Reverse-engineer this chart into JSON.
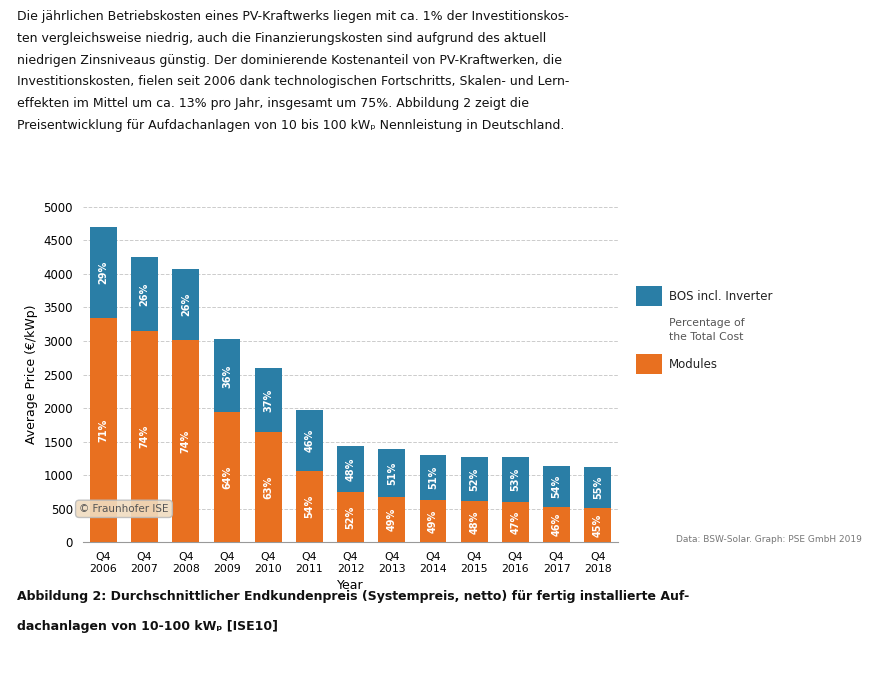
{
  "years": [
    "Q4\n2006",
    "Q4\n2007",
    "Q4\n2008",
    "Q4\n2009",
    "Q4\n2010",
    "Q4\n2011",
    "Q4\n2012",
    "Q4\n2013",
    "Q4\n2014",
    "Q4\n2015",
    "Q4\n2016",
    "Q4\n2017",
    "Q4\n2018"
  ],
  "total": [
    4700,
    4250,
    4075,
    3025,
    2600,
    1975,
    1430,
    1385,
    1300,
    1270,
    1270,
    1140,
    1130
  ],
  "modules_pct": [
    71,
    74,
    74,
    64,
    63,
    54,
    52,
    49,
    49,
    48,
    47,
    46,
    45
  ],
  "bos_pct": [
    29,
    26,
    26,
    36,
    37,
    46,
    48,
    51,
    51,
    52,
    53,
    54,
    55
  ],
  "color_modules": "#E87020",
  "color_bos": "#2A7EA6",
  "ylabel": "Average Price (€/kWp)",
  "xlabel": "Year",
  "ylim": [
    0,
    5000
  ],
  "yticks": [
    0,
    500,
    1000,
    1500,
    2000,
    2500,
    3000,
    3500,
    4000,
    4500,
    5000
  ],
  "legend_bos": "BOS incl. Inverter",
  "legend_pct": "Percentage of\nthe Total Cost",
  "legend_modules": "Modules",
  "watermark": "© Fraunhofer ISE",
  "datasource": "Data: BSW-Solar. Graph: PSE GmbH 2019",
  "caption_line1": "Abbildung 2: Durchschnittlicher Endkundenpreis (Systempreis, netto) für fertig installierte Auf-",
  "caption_line2": "dachanlagen von 10-100 kWₚ [ISE10]",
  "header_lines": [
    "Die jährlichen Betriebskosten eines PV-Kraftwerks liegen mit ca. 1% der Investitionskos-",
    "ten vergleichsweise niedrig, auch die Finanzierungskosten sind aufgrund des aktuell",
    "niedrigen Zinsniveaus günstig. Der dominierende Kostenanteil von PV-Kraftwerken, die",
    "Investitionskosten, fielen seit 2006 dank technologischen Fortschritts, Skalen- und Lern-",
    "effekten im Mittel um ca. 13% pro Jahr, insgesamt um 75%. Abbildung 2 zeigt die",
    "Preisentwicklung für Aufdachanlagen von 10 bis 100 kWₚ Nennleistung in Deutschland."
  ],
  "background_color": "#FFFFFF",
  "grid_color": "#CCCCCC"
}
